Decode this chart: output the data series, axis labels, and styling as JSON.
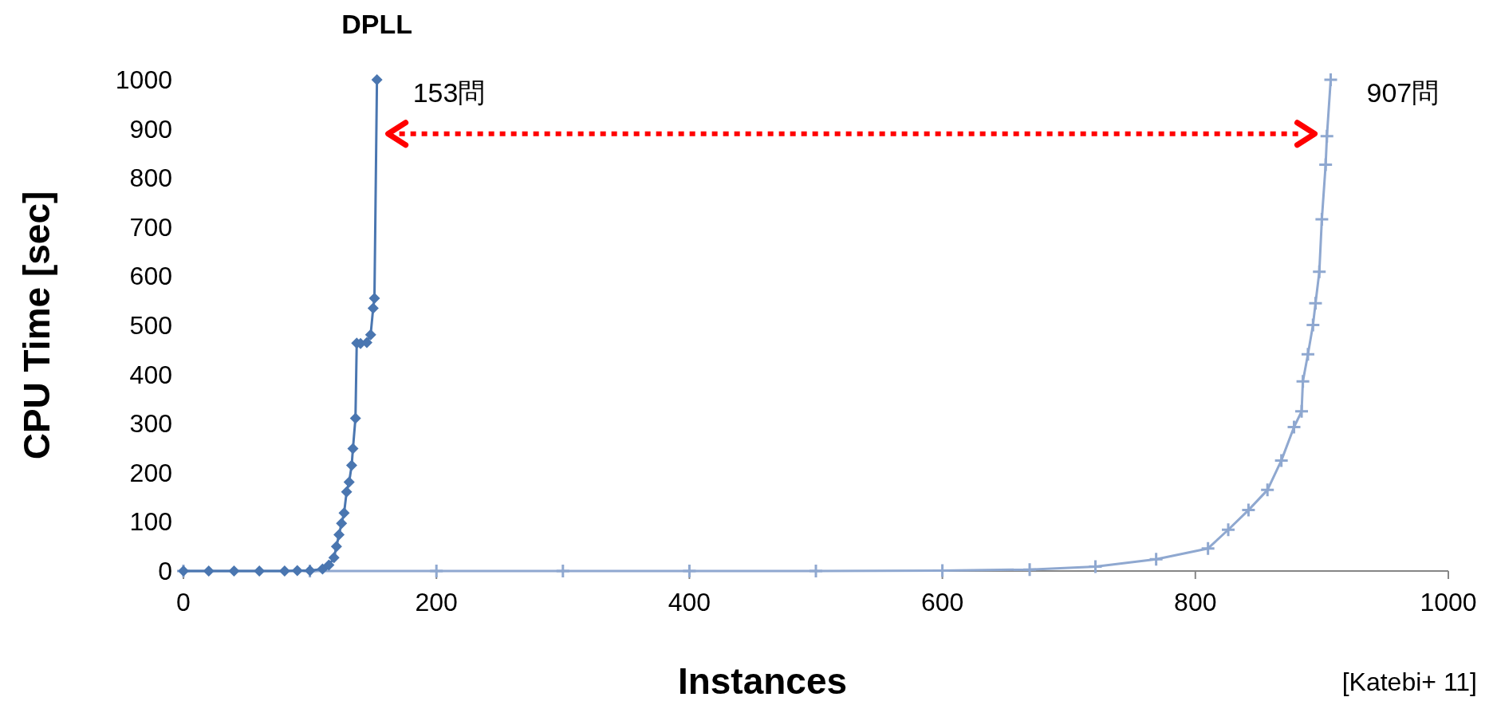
{
  "chart_data": {
    "type": "line",
    "xlabel": "Instances",
    "ylabel": "CPU Time [sec]",
    "xlim": [
      0,
      1000
    ],
    "xticks": [
      0,
      200,
      400,
      600,
      800,
      1000
    ],
    "ylim": [
      0,
      1000
    ],
    "yticks": [
      0,
      100,
      200,
      300,
      400,
      500,
      600,
      700,
      800,
      900,
      1000
    ],
    "grid": false,
    "line_style": "solid",
    "series": [
      {
        "name": "DPLL",
        "color": "#4a76b0",
        "marker": "diamond",
        "x": [
          0,
          20,
          40,
          60,
          80,
          90,
          100,
          110,
          115,
          119,
          121,
          123,
          125,
          127,
          129,
          131,
          133,
          134,
          136,
          137,
          140,
          145,
          148,
          150,
          151,
          153
        ],
        "values": [
          0,
          0,
          0,
          0,
          0,
          1,
          1,
          4,
          12,
          27,
          50,
          74,
          97,
          118,
          161,
          181,
          215,
          249,
          311,
          464,
          463,
          465,
          481,
          535,
          555,
          1000
        ]
      },
      {
        "color": "#8fa8d0",
        "marker": "cross",
        "x": [
          0,
          100,
          200,
          300,
          400,
          500,
          600,
          669,
          721,
          769,
          810,
          826,
          842,
          857,
          868,
          878,
          884,
          885,
          889,
          893,
          895,
          898,
          900,
          903,
          904,
          907
        ],
        "values": [
          0,
          0,
          0,
          0,
          0,
          0,
          1,
          3,
          9,
          24,
          46,
          84,
          124,
          165,
          225,
          293,
          325,
          386,
          441,
          501,
          545,
          609,
          716,
          827,
          885,
          1000
        ]
      }
    ],
    "annotations": [
      {
        "text": "153問",
        "x": 153,
        "y": 1000
      },
      {
        "text": "907問",
        "x": 907,
        "y": 1000
      },
      "[Katebi+ 11]"
    ]
  }
}
